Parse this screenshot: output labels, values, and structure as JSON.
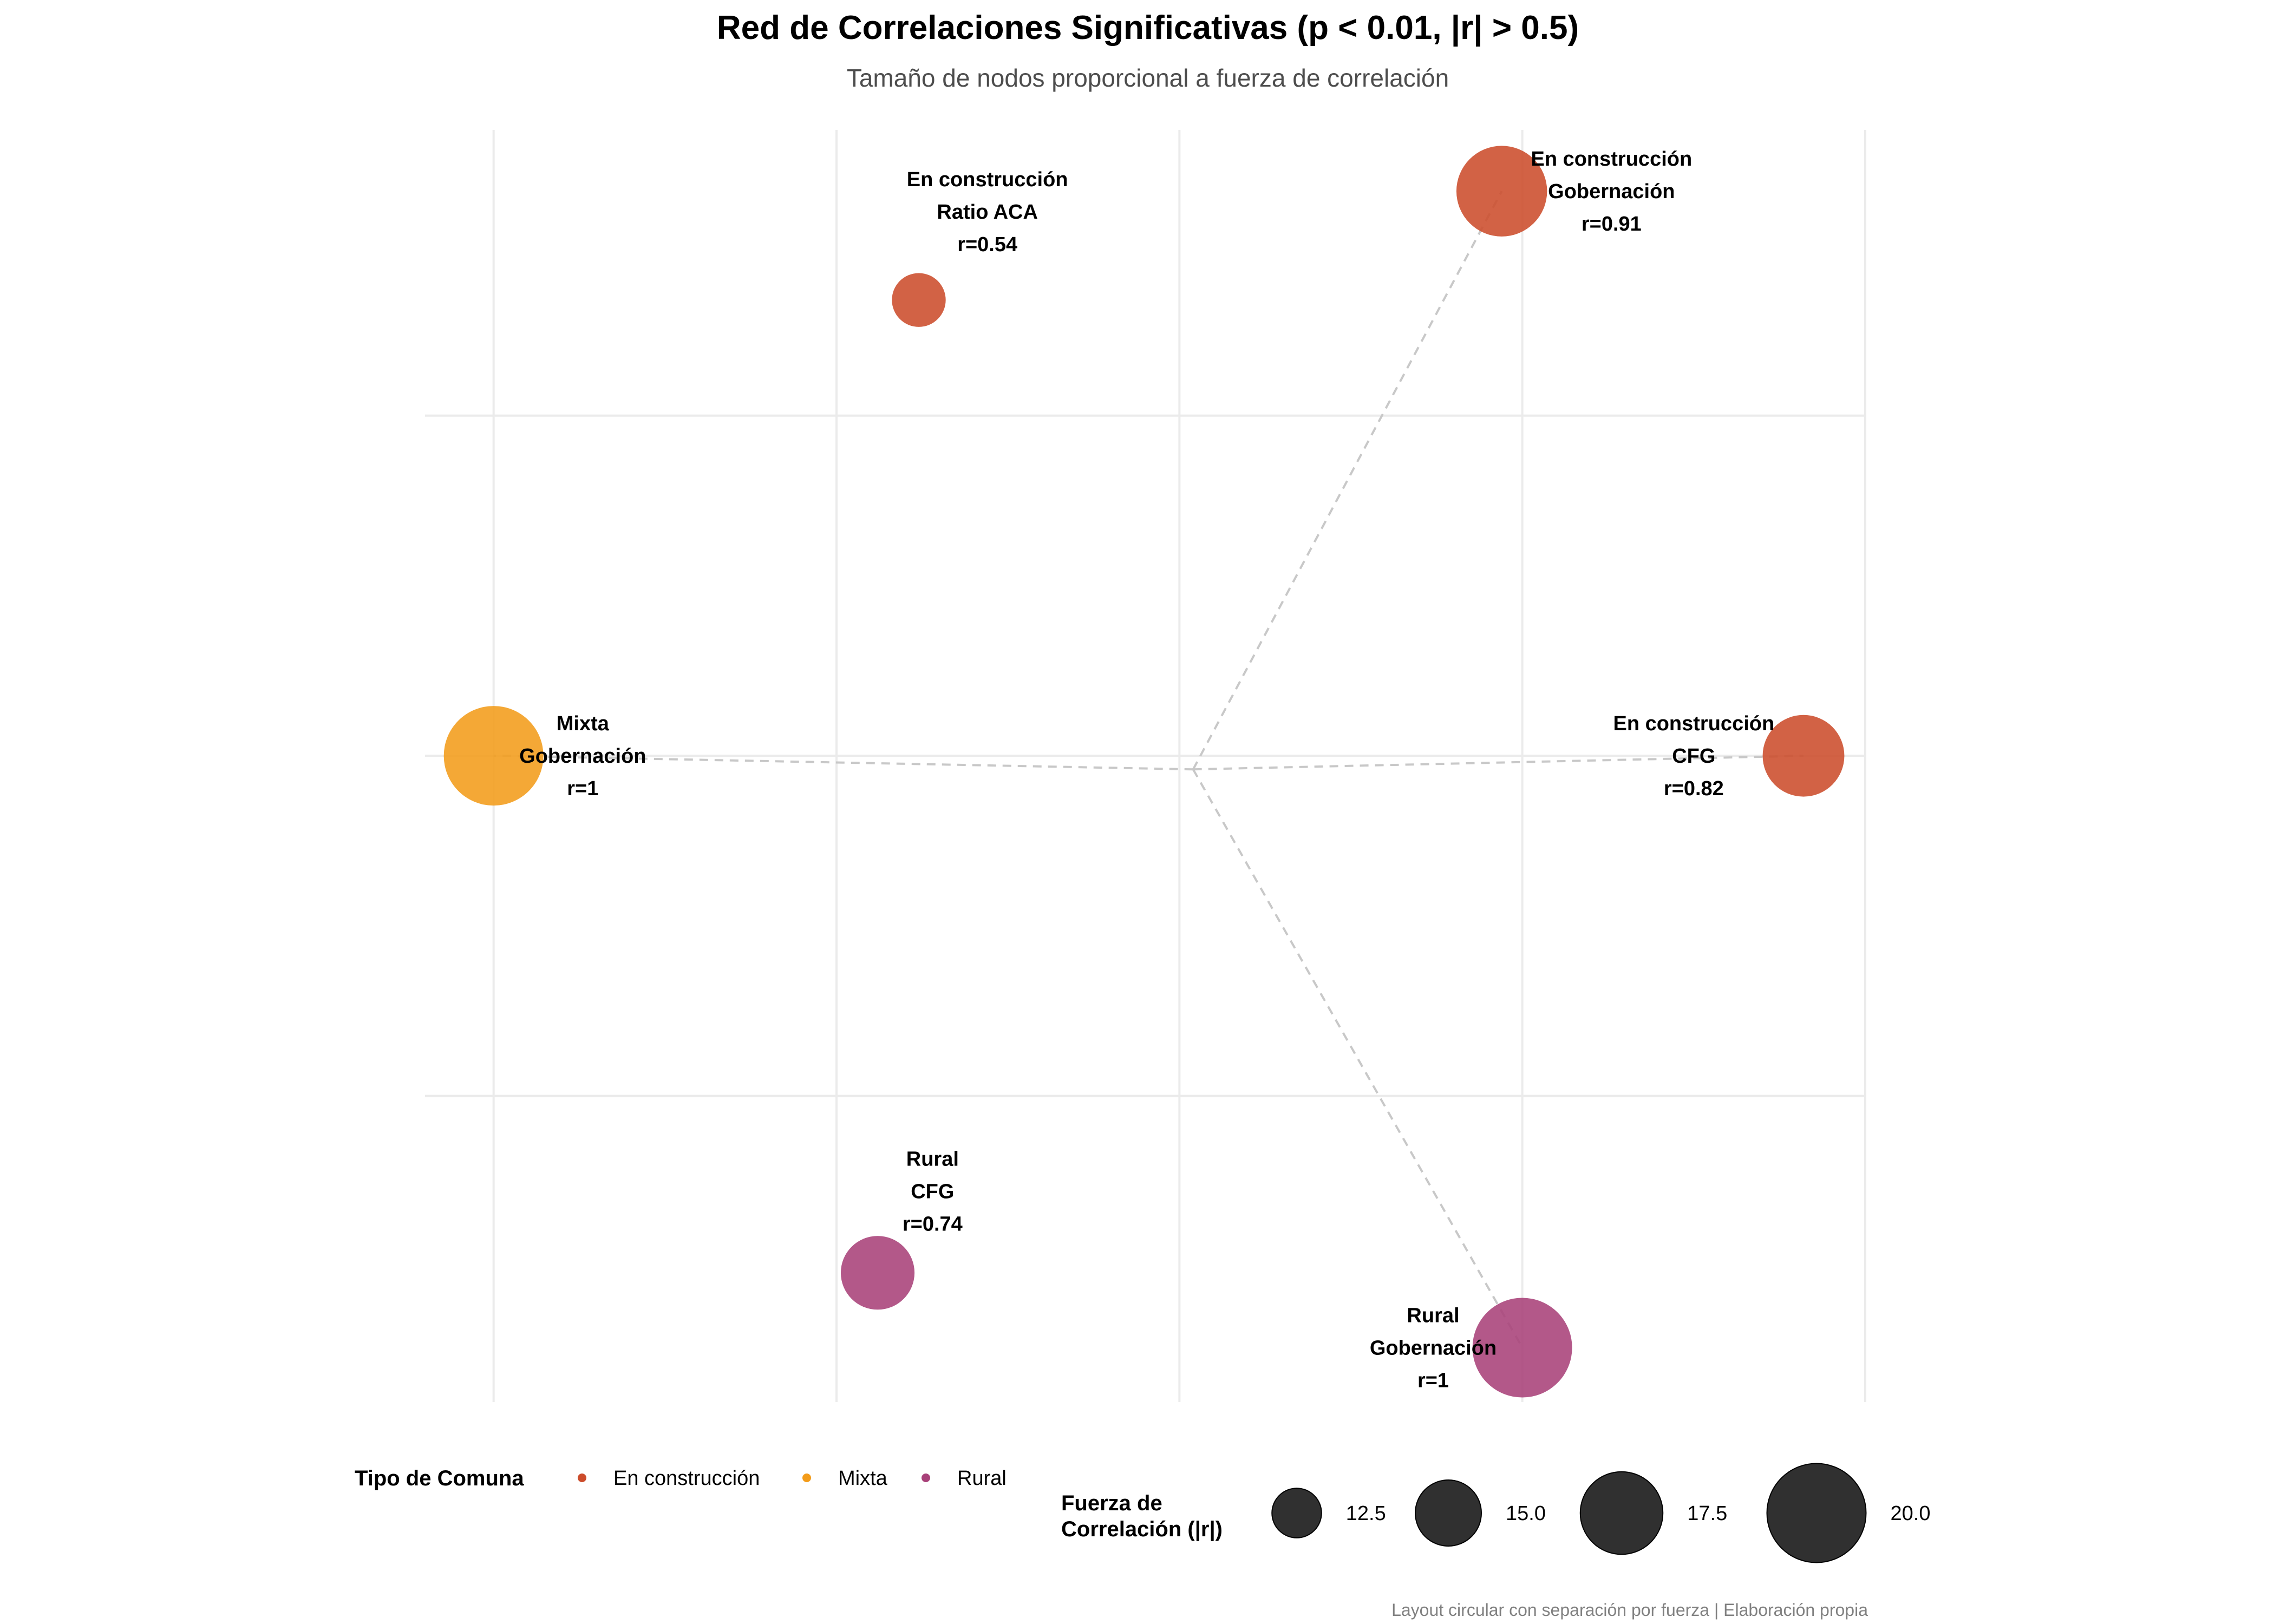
{
  "chart_data": {
    "type": "scatter",
    "title": "Red de Correlaciones Significativas (p < 0.01, |r| > 0.5)",
    "subtitle": "Tamaño de nodos proporcional a fuerza de correlación",
    "caption": "Layout circular con separación por fuerza | Elaboración propia",
    "grid": true,
    "axes_visible": false,
    "xlim": [
      -1.1,
      1.0
    ],
    "ylim": [
      -0.95,
      0.92
    ],
    "hub": {
      "x": 0.02,
      "y": -0.02
    },
    "nodes": [
      {
        "id": "n1",
        "x": 0.47,
        "y": 0.83,
        "size": 18.2,
        "group": "En construcción",
        "label_lines": [
          "En construcción",
          "Gobernación",
          "r=0.91"
        ],
        "label_dx": 0.16,
        "label_dy": 0.0
      },
      {
        "id": "n2",
        "x": -0.38,
        "y": 0.67,
        "size": 10.8,
        "group": "En construcción",
        "label_lines": [
          "En construcción",
          "Ratio ACA",
          "r=0.54"
        ],
        "label_dx": 0.1,
        "label_dy": 0.13
      },
      {
        "id": "n3",
        "x": -1.0,
        "y": 0.0,
        "size": 20.0,
        "group": "Mixta",
        "label_lines": [
          "Mixta",
          "Gobernación",
          "r=1"
        ],
        "label_dx": 0.13,
        "label_dy": 0.0
      },
      {
        "id": "n4",
        "x": 0.91,
        "y": 0.0,
        "size": 16.4,
        "group": "En construcción",
        "label_lines": [
          "En construcción",
          "CFG",
          "r=0.82"
        ],
        "label_dx": -0.16,
        "label_dy": 0.0
      },
      {
        "id": "n5",
        "x": -0.44,
        "y": -0.76,
        "size": 14.8,
        "group": "Rural",
        "label_lines": [
          "Rural",
          "CFG",
          "r=0.74"
        ],
        "label_dx": 0.08,
        "label_dy": 0.12
      },
      {
        "id": "n6",
        "x": 0.5,
        "y": -0.87,
        "size": 20.0,
        "group": "Rural",
        "label_lines": [
          "Rural",
          "Gobernación",
          "r=1"
        ],
        "label_dx": -0.13,
        "label_dy": 0.0
      }
    ],
    "edges": [
      {
        "from": "hub",
        "to": "n1"
      },
      {
        "from": "hub",
        "to": "n3"
      },
      {
        "from": "hub",
        "to": "n4"
      },
      {
        "from": "hub",
        "to": "n6"
      }
    ],
    "legend": {
      "placement": "bottom",
      "color": {
        "title": "Tipo de Comuna",
        "entries": [
          {
            "label": "En construcción",
            "color": "#cc4c2b"
          },
          {
            "label": "Mixta",
            "color": "#f39c1a"
          },
          {
            "label": "Rural",
            "color": "#a84179"
          }
        ]
      },
      "size": {
        "title_lines": [
          "Fuerza de",
          "Correlación (|r|)"
        ],
        "entries": [
          {
            "label": "12.5",
            "value": 12.5
          },
          {
            "label": "15.0",
            "value": 15.0
          },
          {
            "label": "17.5",
            "value": 17.5
          },
          {
            "label": "20.0",
            "value": 20.0
          }
        ]
      }
    },
    "colors": {
      "En construcción": "#cc4c2b",
      "Mixta": "#f39c1a",
      "Rural": "#a84179",
      "size_legend_fill": "#1a1a1a",
      "edge": "#c8c8c8",
      "grid": "#ebebeb"
    }
  }
}
